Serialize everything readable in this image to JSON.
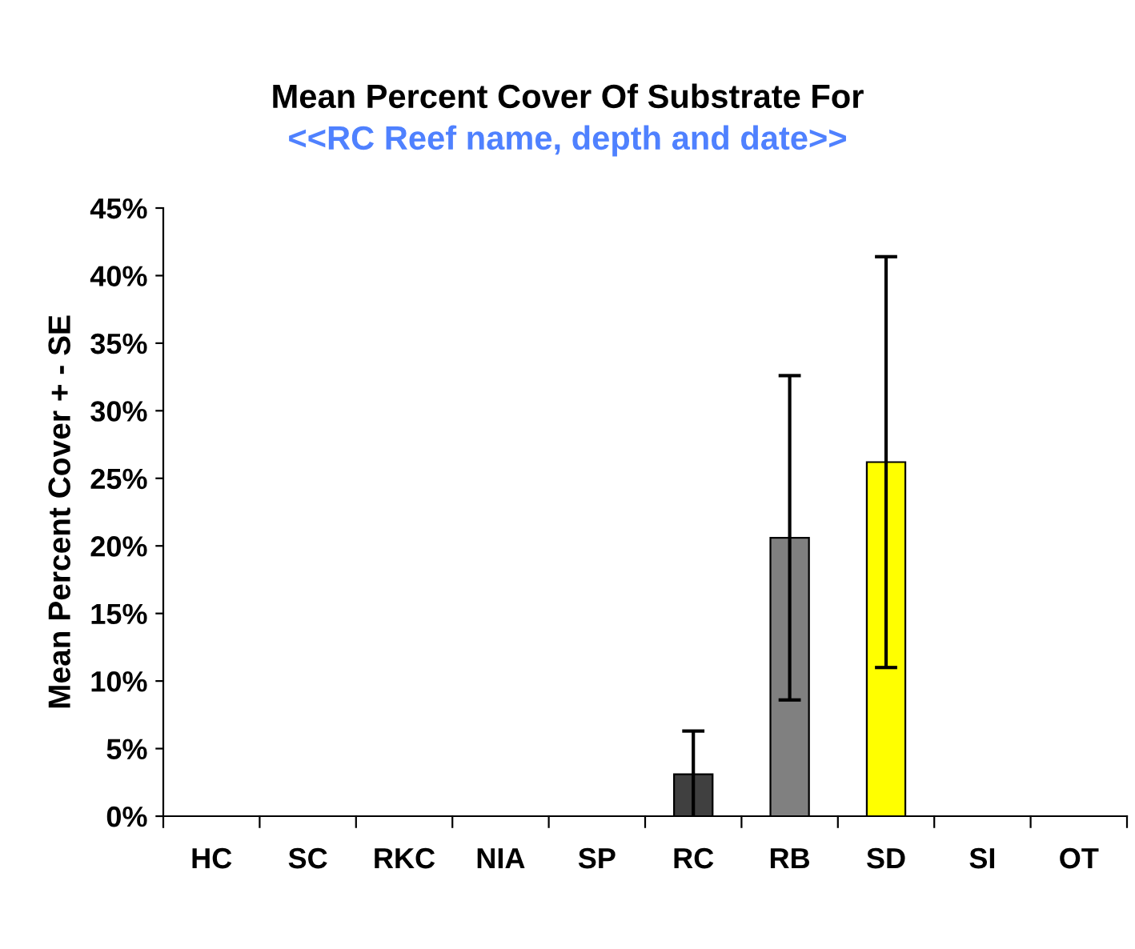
{
  "chart_data": {
    "type": "bar",
    "title": "Mean Percent Cover Of Substrate For",
    "subtitle": "<<RC Reef name, depth and date>>",
    "ylabel": "Mean Percent Cover + - SE",
    "categories": [
      "HC",
      "SC",
      "RKC",
      "NIA",
      "SP",
      "RC",
      "RB",
      "SD",
      "SI",
      "OT"
    ],
    "values": [
      0,
      0,
      0,
      0,
      0,
      3.1,
      20.6,
      26.2,
      0,
      0
    ],
    "errors": [
      null,
      null,
      null,
      null,
      null,
      3.2,
      12.0,
      15.2,
      null,
      null
    ],
    "colors": [
      "#000000",
      "#000000",
      "#000000",
      "#000000",
      "#000000",
      "#404040",
      "#808080",
      "#ffff00",
      "#000000",
      "#000000"
    ],
    "ylim": [
      0,
      45
    ],
    "yticks": [
      {
        "value": 0,
        "label": "0%"
      },
      {
        "value": 5,
        "label": "5%"
      },
      {
        "value": 10,
        "label": "10%"
      },
      {
        "value": 15,
        "label": "15%"
      },
      {
        "value": 20,
        "label": "20%"
      },
      {
        "value": 25,
        "label": "25%"
      },
      {
        "value": 30,
        "label": "30%"
      },
      {
        "value": 35,
        "label": "35%"
      },
      {
        "value": 40,
        "label": "40%"
      },
      {
        "value": 45,
        "label": "45%"
      }
    ],
    "grid": false,
    "legend": false
  }
}
